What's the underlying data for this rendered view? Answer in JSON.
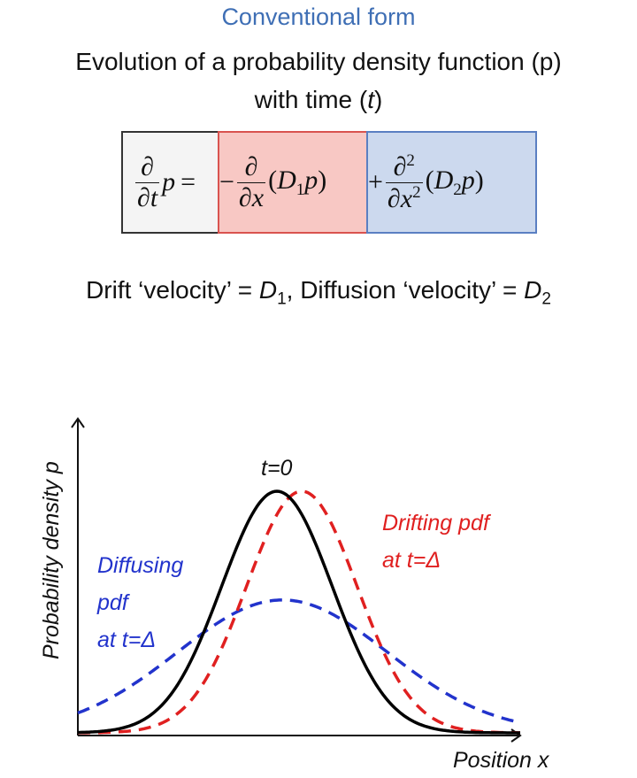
{
  "header": {
    "heading": "Conventional form",
    "line1": "Evolution of a probability density function (p)",
    "line2_prefix": "with time (",
    "line2_var": "t",
    "line2_suffix": ")"
  },
  "equation": {
    "partial": "∂",
    "p": "p",
    "equals": "=",
    "minus": "−",
    "plus": "+",
    "time_var": "t",
    "x_var": "x",
    "power": "2",
    "D1": "D",
    "D1_sub": "1",
    "D2": "D",
    "D2_sub": "2",
    "open": "(",
    "close": ")"
  },
  "velocity": {
    "drift_text": "Drift ‘velocity’ = ",
    "drift_var": "D",
    "drift_sub": "1",
    "sep": ", Diffusion ‘velocity’ = ",
    "diff_var": "D",
    "diff_sub": "2"
  },
  "plot_labels": {
    "t0": "t=0",
    "drifting_line1": "Drifting pdf",
    "drifting_line2": "at t=Δ",
    "diffusing_line1": "Diffusing",
    "diffusing_line2": "pdf",
    "diffusing_line3": "at t=Δ",
    "y_axis": "Probability density p",
    "x_axis": "Position x"
  },
  "colors": {
    "heading": "#3f6fb5",
    "drift_box": "#f8c8c4",
    "diffusion_box": "#ccd9ee",
    "drift_curve": "#e02020",
    "diffusion_curve": "#2233cc",
    "initial_curve": "#000000"
  },
  "curves": {
    "initial": {
      "center": 0,
      "sigma": 1.0,
      "peak": 1.0
    },
    "drifting": {
      "center": 0.45,
      "sigma": 1.0,
      "peak": 1.0
    },
    "diffusing": {
      "center": 0.1,
      "sigma": 1.9,
      "peak": 0.55
    }
  }
}
